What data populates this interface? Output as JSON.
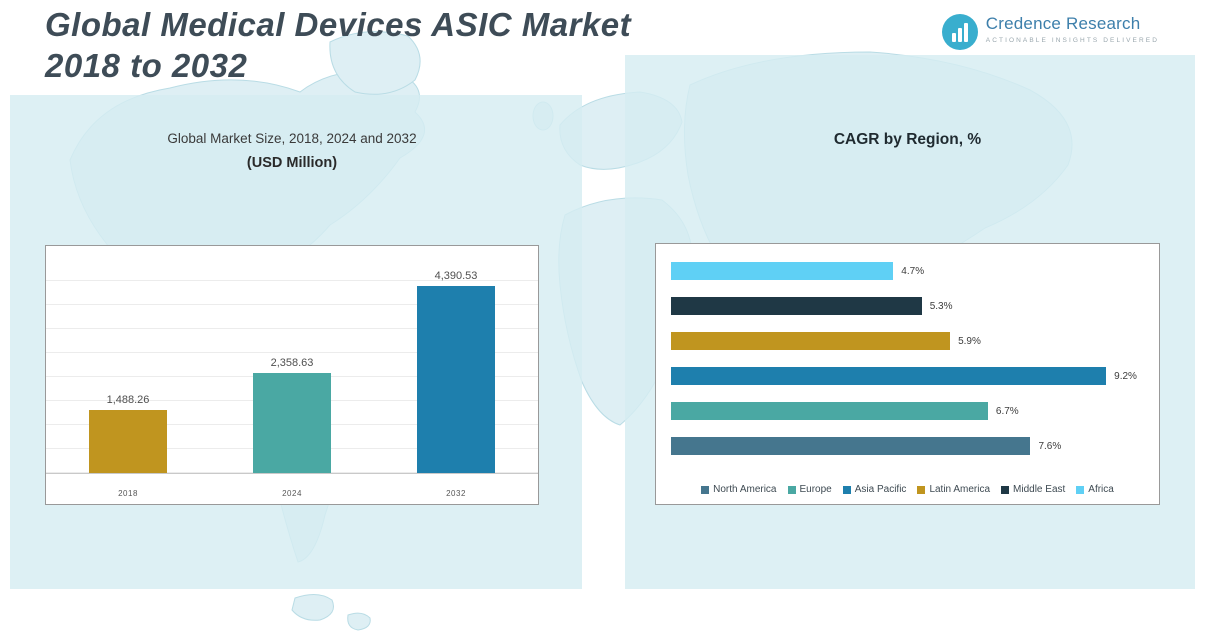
{
  "header": {
    "title_line1": "Global Medical Devices ASIC Market",
    "title_line2": "2018 to 2032"
  },
  "logo": {
    "name": "Credence Research",
    "tagline": "Actionable Insights Delivered",
    "icon": "bar-chart-in-circle-icon",
    "accent_color": "#39AECE",
    "name_color": "#3D7FAB"
  },
  "left_chart": {
    "title_line1": "Global Market Size, 2018, 2024 and 2032",
    "title_line2": "(USD Million)"
  },
  "right_chart": {
    "title": "CAGR by Region, %"
  },
  "chart_data": [
    {
      "type": "bar",
      "title": "Global Market Size, 2018, 2024 and 2032 (USD Million)",
      "categories": [
        "2018",
        "2024",
        "2032"
      ],
      "values": [
        1488.26,
        2358.63,
        4390.53
      ],
      "value_labels": [
        "1,488.26",
        "2,358.63",
        "4,390.53"
      ],
      "bar_colors": [
        "#C0951F",
        "#4AA8A3",
        "#1E7FAD"
      ],
      "xlabel": "",
      "ylabel": "",
      "ylim": [
        0,
        5000
      ],
      "grid": true,
      "legend_position": "none"
    },
    {
      "type": "bar",
      "orientation": "horizontal",
      "title": "CAGR by Region, %",
      "rows": [
        {
          "region": "Africa",
          "value": 4.7,
          "label": "4.7%",
          "color": "#5FD0F5"
        },
        {
          "region": "Middle East",
          "value": 5.3,
          "label": "5.3%",
          "color": "#1F3845"
        },
        {
          "region": "Latin America",
          "value": 5.9,
          "label": "5.9%",
          "color": "#C0951F"
        },
        {
          "region": "Asia Pacific",
          "value": 9.2,
          "label": "9.2%",
          "color": "#1E7FAD"
        },
        {
          "region": "Europe",
          "value": 6.7,
          "label": "6.7%",
          "color": "#4AA8A3"
        },
        {
          "region": "North America",
          "value": 7.6,
          "label": "7.6%",
          "color": "#45768E"
        }
      ],
      "xlim": [
        0,
        10
      ],
      "grid": false,
      "legend_position": "bottom",
      "legend": [
        {
          "label": "North America",
          "color": "#45768E"
        },
        {
          "label": "Europe",
          "color": "#4AA8A3"
        },
        {
          "label": "Asia Pacific",
          "color": "#1E7FAD"
        },
        {
          "label": "Latin America",
          "color": "#C0951F"
        },
        {
          "label": "Middle East",
          "color": "#1F3845"
        },
        {
          "label": "Africa",
          "color": "#5FD0F5"
        }
      ]
    }
  ]
}
